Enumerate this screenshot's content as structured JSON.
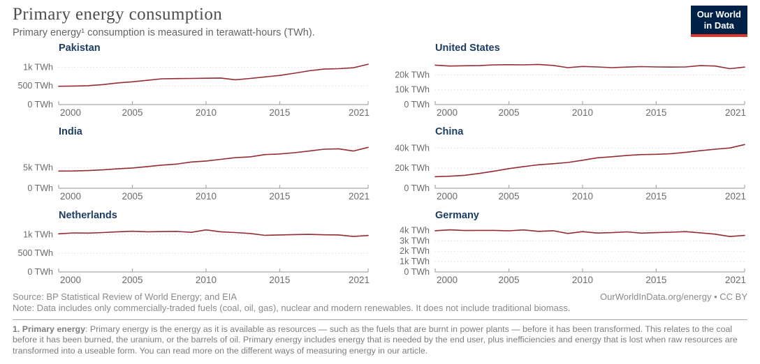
{
  "header": {
    "title": "Primary energy consumption",
    "subtitle": "Primary energy¹ consumption is measured in terawatt-hours (TWh).",
    "logo": {
      "line1": "Our World",
      "line2": "in Data"
    }
  },
  "style": {
    "line_color": "#952b34",
    "chart_title_color": "#1d3d63",
    "grid_color": "#dcdcdc",
    "axis_color": "#a8a8a8",
    "tick_label_color": "#6b6b6b",
    "logo_navy": "#002147",
    "logo_red": "#dc352b"
  },
  "chart_data": [
    {
      "type": "line",
      "title": "Pakistan",
      "x": [
        2000,
        2001,
        2002,
        2003,
        2004,
        2005,
        2006,
        2007,
        2008,
        2009,
        2010,
        2011,
        2012,
        2013,
        2014,
        2015,
        2016,
        2017,
        2018,
        2019,
        2020,
        2021
      ],
      "values": [
        490,
        497,
        505,
        535,
        580,
        610,
        650,
        690,
        695,
        700,
        705,
        710,
        665,
        700,
        740,
        780,
        840,
        905,
        950,
        960,
        985,
        1080
      ],
      "ylabel": "TWh",
      "ylim": [
        0,
        1250
      ],
      "yticks": [
        {
          "value": 0,
          "label": "0 TWh"
        },
        {
          "value": 500,
          "label": "500 TWh"
        },
        {
          "value": 1000,
          "label": "1k TWh"
        }
      ],
      "xticks": [
        {
          "value": 2000,
          "label": "2000"
        },
        {
          "value": 2005,
          "label": "2005"
        },
        {
          "value": 2010,
          "label": "2010"
        },
        {
          "value": 2015,
          "label": "2015"
        },
        {
          "value": 2021,
          "label": "2021"
        }
      ]
    },
    {
      "type": "line",
      "title": "United States",
      "x": [
        2000,
        2001,
        2002,
        2003,
        2004,
        2005,
        2006,
        2007,
        2008,
        2009,
        2010,
        2011,
        2012,
        2013,
        2014,
        2015,
        2016,
        2017,
        2018,
        2019,
        2020,
        2021
      ],
      "values": [
        26600,
        26000,
        26200,
        26300,
        26800,
        26900,
        26800,
        27100,
        26400,
        24900,
        25700,
        25400,
        24900,
        25300,
        25600,
        25400,
        25300,
        25400,
        26300,
        26000,
        24200,
        25300
      ],
      "ylabel": "TWh",
      "ylim": [
        0,
        31500
      ],
      "yticks": [
        {
          "value": 0,
          "label": "0 TWh"
        },
        {
          "value": 10000,
          "label": "10k TWh"
        },
        {
          "value": 20000,
          "label": "20k TWh"
        }
      ],
      "xticks": [
        {
          "value": 2000,
          "label": "2000"
        },
        {
          "value": 2005,
          "label": "2005"
        },
        {
          "value": 2010,
          "label": "2010"
        },
        {
          "value": 2015,
          "label": "2015"
        },
        {
          "value": 2021,
          "label": "2021"
        }
      ]
    },
    {
      "type": "line",
      "title": "India",
      "x": [
        2000,
        2001,
        2002,
        2003,
        2004,
        2005,
        2006,
        2007,
        2008,
        2009,
        2010,
        2011,
        2012,
        2013,
        2014,
        2015,
        2016,
        2017,
        2018,
        2019,
        2020,
        2021
      ],
      "values": [
        4160,
        4190,
        4280,
        4450,
        4700,
        4900,
        5250,
        5600,
        5850,
        6350,
        6600,
        7000,
        7400,
        7600,
        8150,
        8300,
        8600,
        9000,
        9450,
        9550,
        9000,
        9900
      ],
      "ylabel": "TWh",
      "ylim": [
        0,
        11300
      ],
      "yticks": [
        {
          "value": 0,
          "label": "0 TWh"
        },
        {
          "value": 5000,
          "label": "5k TWh"
        }
      ],
      "xticks": [
        {
          "value": 2000,
          "label": "2000"
        },
        {
          "value": 2005,
          "label": "2005"
        },
        {
          "value": 2010,
          "label": "2010"
        },
        {
          "value": 2015,
          "label": "2015"
        },
        {
          "value": 2021,
          "label": "2021"
        }
      ]
    },
    {
      "type": "line",
      "title": "China",
      "x": [
        2000,
        2001,
        2002,
        2003,
        2004,
        2005,
        2006,
        2007,
        2008,
        2009,
        2010,
        2011,
        2012,
        2013,
        2014,
        2015,
        2016,
        2017,
        2018,
        2019,
        2020,
        2021
      ],
      "values": [
        11500,
        12000,
        12900,
        14800,
        17100,
        19600,
        21600,
        23400,
        24400,
        25700,
        27900,
        30300,
        31400,
        32700,
        33500,
        33800,
        34400,
        35800,
        37400,
        38900,
        40100,
        43500
      ],
      "ylabel": "TWh",
      "ylim": [
        0,
        46500
      ],
      "yticks": [
        {
          "value": 0,
          "label": "0 TWh"
        },
        {
          "value": 20000,
          "label": "20k TWh"
        },
        {
          "value": 40000,
          "label": "40k TWh"
        }
      ],
      "xticks": [
        {
          "value": 2000,
          "label": "2000"
        },
        {
          "value": 2005,
          "label": "2005"
        },
        {
          "value": 2010,
          "label": "2010"
        },
        {
          "value": 2015,
          "label": "2015"
        },
        {
          "value": 2021,
          "label": "2021"
        }
      ]
    },
    {
      "type": "line",
      "title": "Netherlands",
      "x": [
        2000,
        2001,
        2002,
        2003,
        2004,
        2005,
        2006,
        2007,
        2008,
        2009,
        2010,
        2011,
        2012,
        2013,
        2014,
        2015,
        2016,
        2017,
        2018,
        2019,
        2020,
        2021
      ],
      "values": [
        1020,
        1045,
        1040,
        1055,
        1075,
        1090,
        1075,
        1080,
        1085,
        1060,
        1125,
        1075,
        1055,
        1030,
        980,
        990,
        1000,
        1005,
        995,
        990,
        950,
        975
      ],
      "ylabel": "TWh",
      "ylim": [
        0,
        1250
      ],
      "yticks": [
        {
          "value": 0,
          "label": "0 TWh"
        },
        {
          "value": 500,
          "label": "500 TWh"
        },
        {
          "value": 1000,
          "label": "1k TWh"
        }
      ],
      "xticks": [
        {
          "value": 2000,
          "label": "2000"
        },
        {
          "value": 2005,
          "label": "2005"
        },
        {
          "value": 2010,
          "label": "2010"
        },
        {
          "value": 2015,
          "label": "2015"
        },
        {
          "value": 2021,
          "label": "2021"
        }
      ]
    },
    {
      "type": "line",
      "title": "Germany",
      "x": [
        2000,
        2001,
        2002,
        2003,
        2004,
        2005,
        2006,
        2007,
        2008,
        2009,
        2010,
        2011,
        2012,
        2013,
        2014,
        2015,
        2016,
        2017,
        2018,
        2019,
        2020,
        2021
      ],
      "values": [
        3970,
        4060,
        3990,
        4005,
        4000,
        3960,
        4050,
        3910,
        3970,
        3710,
        3880,
        3750,
        3790,
        3860,
        3740,
        3790,
        3830,
        3880,
        3770,
        3640,
        3410,
        3520
      ],
      "ylabel": "TWh",
      "ylim": [
        0,
        4500
      ],
      "yticks": [
        {
          "value": 0,
          "label": "0 TWh"
        },
        {
          "value": 1000,
          "label": "1k TWh"
        },
        {
          "value": 2000,
          "label": "2k TWh"
        },
        {
          "value": 3000,
          "label": "3k TWh"
        },
        {
          "value": 4000,
          "label": "4k TWh"
        }
      ],
      "xticks": [
        {
          "value": 2000,
          "label": "2000"
        },
        {
          "value": 2005,
          "label": "2005"
        },
        {
          "value": 2010,
          "label": "2010"
        },
        {
          "value": 2015,
          "label": "2015"
        },
        {
          "value": 2021,
          "label": "2021"
        }
      ]
    }
  ],
  "footer": {
    "source": "Source: BP Statistical Review of World Energy; and EIA",
    "credit_link": "OurWorldInData.org/energy",
    "credit_license": " • CC BY",
    "note": "Note: Data includes only commercially-traded fuels (coal, oil, gas), nuclear and modern renewables. It does not include traditional biomass."
  },
  "footnote": {
    "lead": "1. Primary energy",
    "text": ": Primary energy is the energy as it is available as resources — such as the fuels that are burnt in power plants — before it has been transformed. This relates to the coal before it has been burned, the uranium, or the barrels of oil. Primary energy includes energy that is needed by the end user, plus inefficiencies and energy that is lost when raw resources are transformed into a useable form. You can read more on the different ways of measuring energy in our article."
  }
}
